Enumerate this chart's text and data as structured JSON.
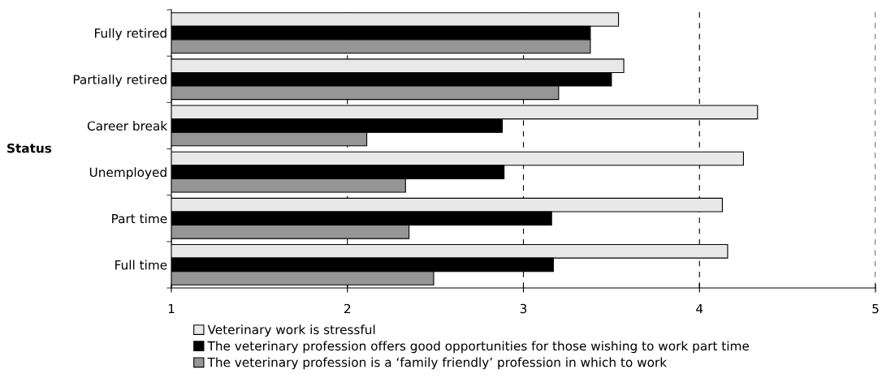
{
  "chart_data": {
    "type": "bar",
    "orientation": "horizontal",
    "ylabel": "Status",
    "categories": [
      "Fully retired",
      "Partially retired",
      "Career break",
      "Unemployed",
      "Part time",
      "Full time"
    ],
    "series": [
      {
        "name": "Veterinary work is stressful",
        "color": "#e8e8e8",
        "values": [
          3.54,
          3.57,
          4.33,
          4.25,
          4.13,
          4.16
        ]
      },
      {
        "name": "The veterinary profession offers good opportunities for those wishing to work part time",
        "color": "#000000",
        "values": [
          3.38,
          3.5,
          2.88,
          2.89,
          3.16,
          3.17
        ]
      },
      {
        "name": "The veterinary profession is a ‘family friendly’ profession in which to work",
        "color": "#969696",
        "values": [
          3.38,
          3.2,
          2.11,
          2.33,
          2.35,
          2.49
        ]
      }
    ],
    "xlim": [
      1,
      5
    ],
    "xticks": [
      1,
      2,
      3,
      4,
      5
    ],
    "grid": "x",
    "legend": "bottom"
  }
}
